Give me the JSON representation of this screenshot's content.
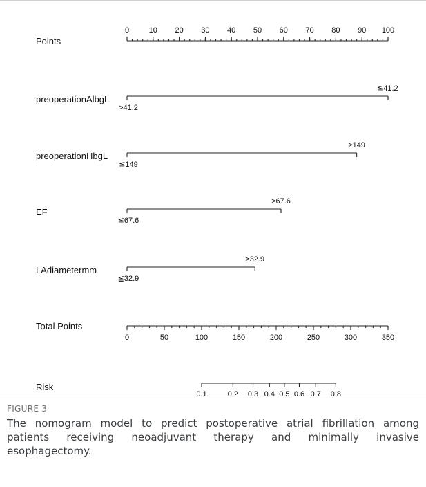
{
  "chart_data": {
    "type": "nomogram",
    "variables": [
      {
        "name": "Points",
        "kind": "scale",
        "range": [
          0,
          100
        ],
        "labeled_ticks": [
          0,
          10,
          20,
          30,
          40,
          50,
          60,
          70,
          80,
          90,
          100
        ],
        "minor_step": 2
      },
      {
        "name": "preoperationAlbgL",
        "kind": "factor",
        "levels": [
          {
            "label": ">41.2",
            "points": 0
          },
          {
            "label": "≦41.2",
            "points": 100
          }
        ]
      },
      {
        "name": "preoperationHbgL",
        "kind": "factor",
        "levels": [
          {
            "label": "≦149",
            "points": 0
          },
          {
            "label": ">149",
            "points": 88
          }
        ]
      },
      {
        "name": "EF",
        "kind": "factor",
        "levels": [
          {
            "label": "≦67.6",
            "points": 0
          },
          {
            "label": ">67.6",
            "points": 59
          }
        ]
      },
      {
        "name": "LAdiametermm",
        "kind": "factor",
        "levels": [
          {
            "label": "≦32.9",
            "points": 0
          },
          {
            "label": ">32.9",
            "points": 49
          }
        ]
      },
      {
        "name": "Total Points",
        "kind": "scale",
        "range": [
          0,
          350
        ],
        "labeled_ticks": [
          0,
          50,
          100,
          150,
          200,
          250,
          300,
          350
        ],
        "minor_step": 10
      },
      {
        "name": "Risk",
        "kind": "probability",
        "ticks": [
          {
            "label": "0.1",
            "total_points": 100
          },
          {
            "label": "0.2",
            "total_points": 142
          },
          {
            "label": "0.3",
            "total_points": 169
          },
          {
            "label": "0.4",
            "total_points": 191
          },
          {
            "label": "0.5",
            "total_points": 211
          },
          {
            "label": "0.6",
            "total_points": 231
          },
          {
            "label": "0.7",
            "total_points": 253
          },
          {
            "label": "0.8",
            "total_points": 280
          }
        ]
      }
    ]
  },
  "caption": {
    "label": "FIGURE 3",
    "text": "The nomogram model to predict postoperative atrial fibrillation among patients receiving neoadjuvant therapy and minimally invasive esophagectomy."
  }
}
